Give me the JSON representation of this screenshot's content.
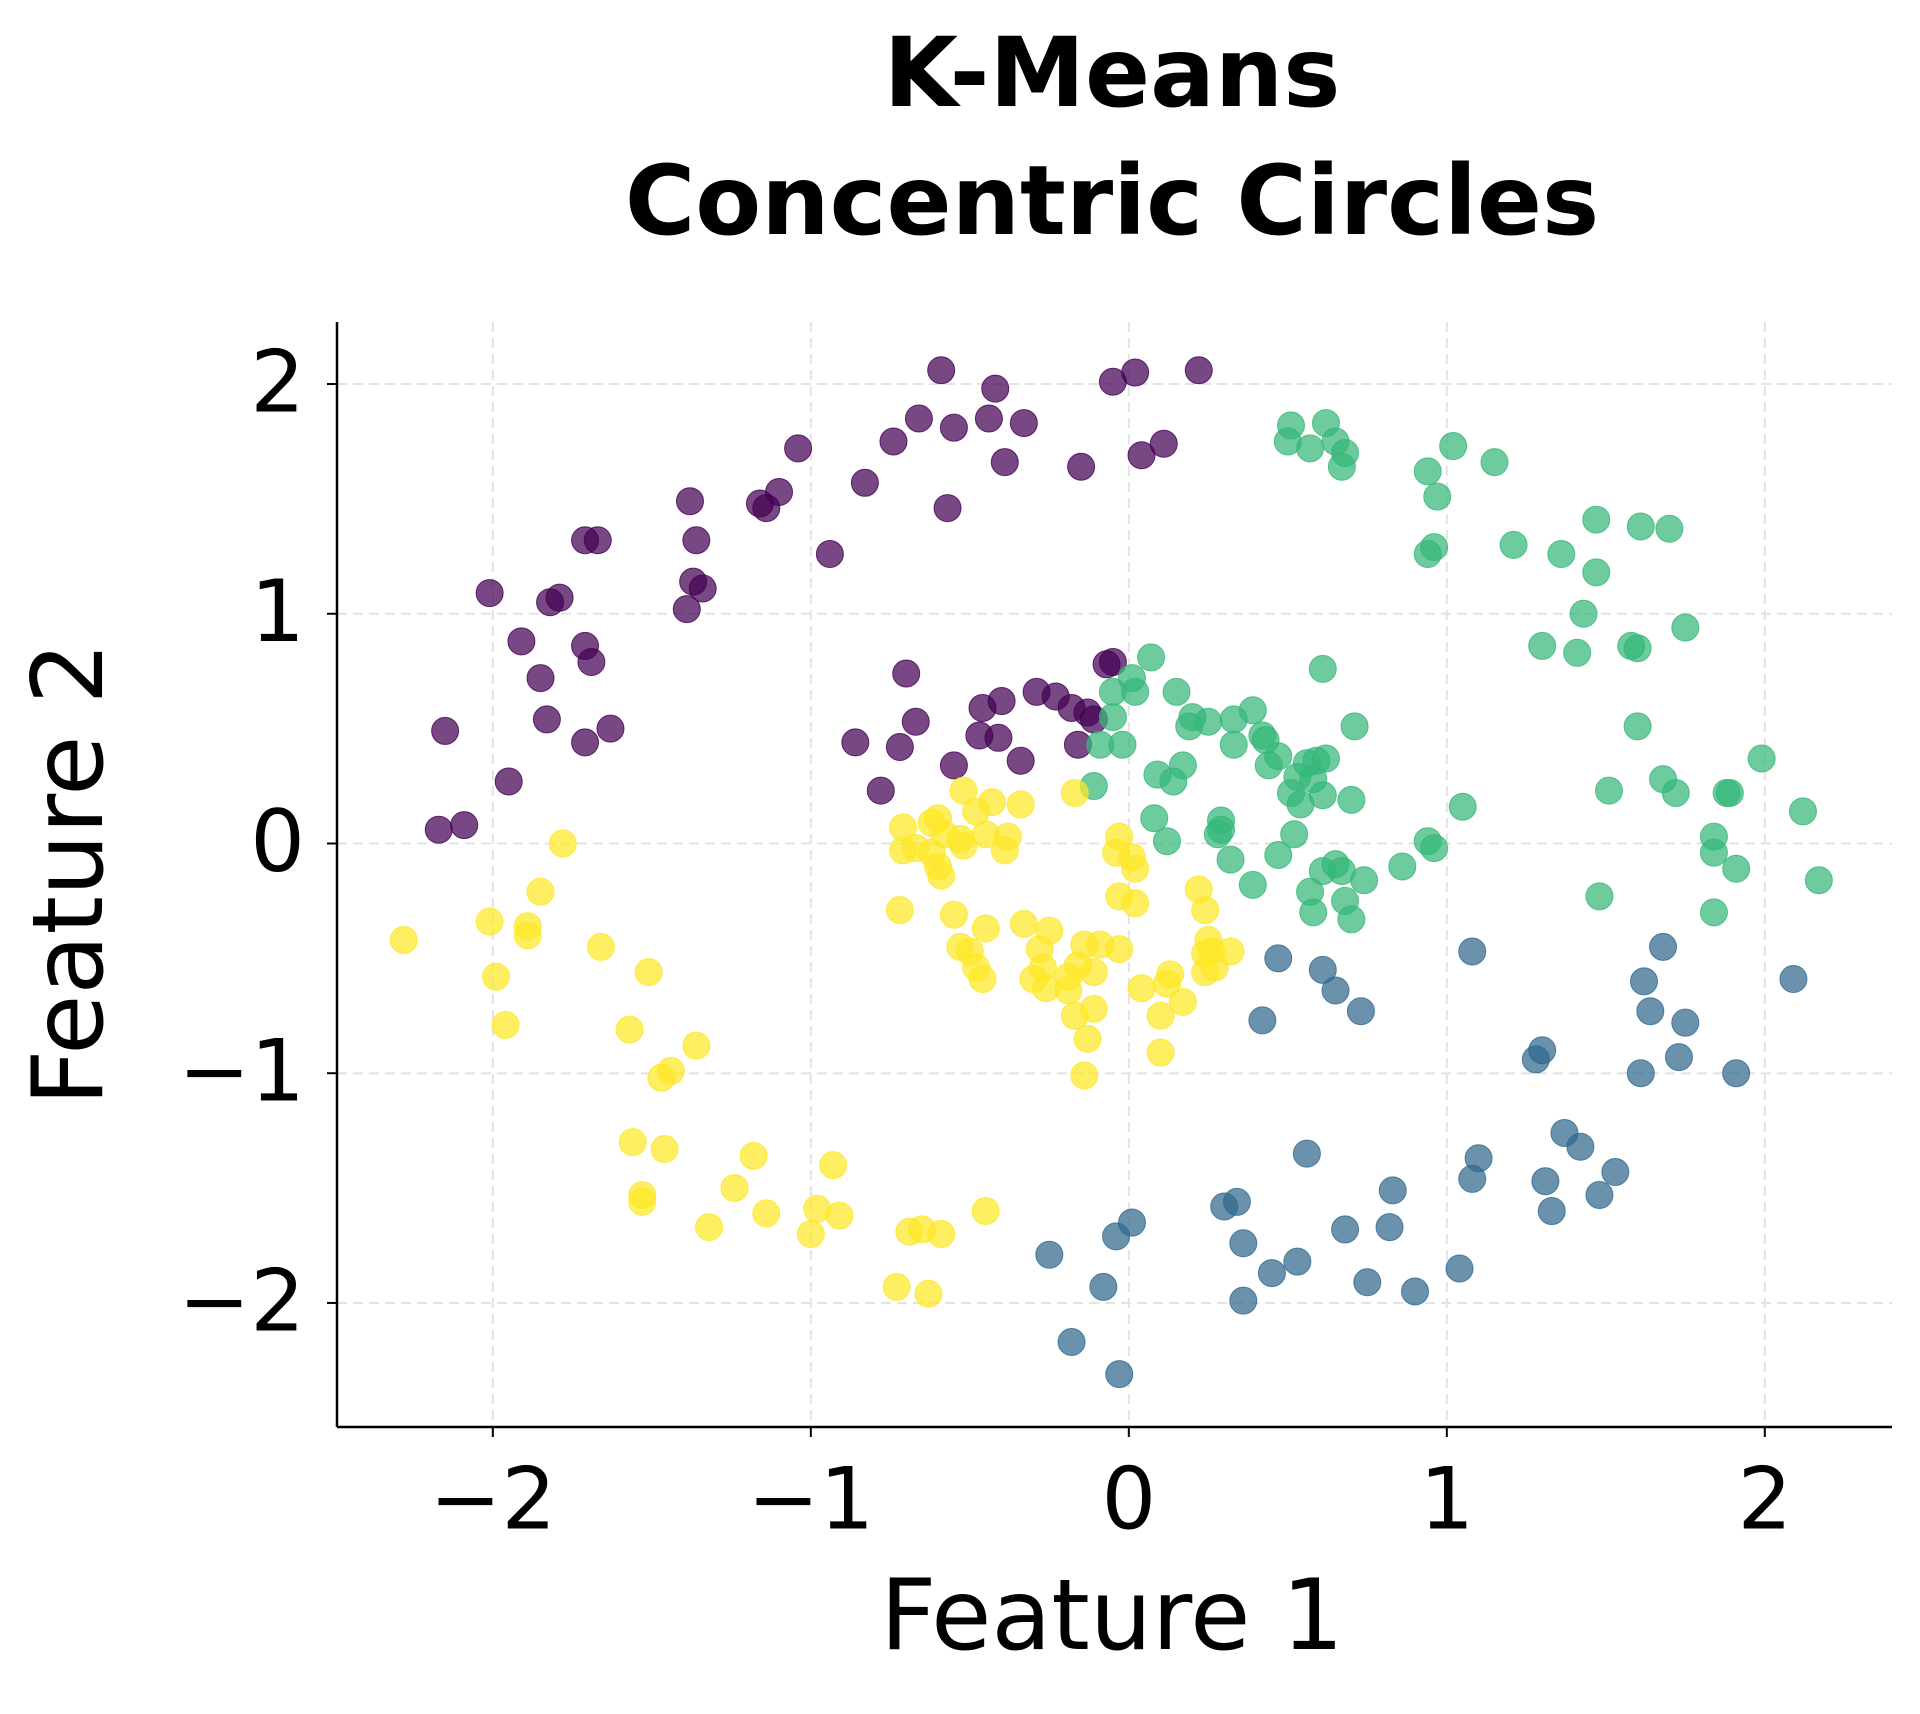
{
  "chart_data": {
    "type": "scatter",
    "title": "K-Means\nConcentric Circles",
    "xlabel": "Feature 1",
    "ylabel": "Feature 2",
    "xlim": [
      -2.49,
      2.4
    ],
    "ylim": [
      -2.54,
      2.27
    ],
    "xticks": [
      {
        "value": -2,
        "label": "−2"
      },
      {
        "value": -1,
        "label": "−1"
      },
      0,
      1,
      2
    ],
    "yticks": [
      {
        "value": -2,
        "label": "−2"
      },
      {
        "value": -1,
        "label": "−1"
      },
      0,
      1,
      2
    ],
    "grid": true,
    "series": [
      {
        "color": "#440154",
        "x": [
          -0.59,
          -0.05,
          0.02,
          0.22,
          -0.42,
          -0.66,
          -0.55,
          -0.44,
          -0.33,
          -1.04,
          -0.74,
          -0.39,
          -0.15,
          0.04,
          0.11,
          -0.83,
          -1.1,
          -1.16,
          -1.14,
          -1.38,
          -0.57,
          -1.36,
          -0.94,
          -1.71,
          -1.67,
          -1.37,
          -1.34,
          -1.39,
          -2.01,
          -1.82,
          -1.79,
          -1.91,
          -1.71,
          -1.69,
          -1.85,
          -1.83,
          -1.71,
          -1.63,
          -2.15,
          -1.95,
          -2.17,
          -2.09,
          -0.7,
          -0.67,
          -0.86,
          -0.72,
          -0.78,
          -0.55,
          -0.46,
          -0.4,
          -0.47,
          -0.41,
          -0.34,
          -0.29,
          -0.23,
          -0.18,
          -0.13,
          -0.16,
          -0.07,
          -0.05,
          -0.11
        ],
        "values": [
          2.06,
          2.01,
          2.05,
          2.06,
          1.98,
          1.85,
          1.81,
          1.85,
          1.83,
          1.72,
          1.75,
          1.66,
          1.64,
          1.69,
          1.74,
          1.57,
          1.53,
          1.48,
          1.46,
          1.49,
          1.46,
          1.32,
          1.26,
          1.32,
          1.32,
          1.14,
          1.11,
          1.02,
          1.09,
          1.05,
          1.07,
          0.88,
          0.86,
          0.79,
          0.72,
          0.54,
          0.44,
          0.5,
          0.49,
          0.27,
          0.06,
          0.08,
          0.74,
          0.53,
          0.44,
          0.42,
          0.23,
          0.34,
          0.59,
          0.62,
          0.47,
          0.46,
          0.36,
          0.66,
          0.64,
          0.59,
          0.57,
          0.43,
          0.78,
          0.79,
          0.54
        ]
      },
      {
        "color": "#31688e",
        "x": [
          0.47,
          0.61,
          0.65,
          0.73,
          0.42,
          1.08,
          1.68,
          2.09,
          1.62,
          1.64,
          1.75,
          1.73,
          1.61,
          1.91,
          1.3,
          1.28,
          1.37,
          1.42,
          0.56,
          1.1,
          1.08,
          1.31,
          1.53,
          1.48,
          1.33,
          0.83,
          0.34,
          0.3,
          0.36,
          0.68,
          0.82,
          0.53,
          0.45,
          0.75,
          0.9,
          1.04,
          0.36,
          0.01,
          -0.04,
          -0.25,
          -0.08,
          -0.18,
          -0.03
        ],
        "values": [
          -0.5,
          -0.55,
          -0.64,
          -0.73,
          -0.77,
          -0.47,
          -0.45,
          -0.59,
          -0.6,
          -0.73,
          -0.78,
          -0.93,
          -1.0,
          -1.0,
          -0.9,
          -0.94,
          -1.26,
          -1.32,
          -1.35,
          -1.37,
          -1.46,
          -1.47,
          -1.43,
          -1.53,
          -1.6,
          -1.51,
          -1.56,
          -1.58,
          -1.74,
          -1.68,
          -1.67,
          -1.82,
          -1.87,
          -1.91,
          -1.95,
          -1.85,
          -1.99,
          -1.65,
          -1.71,
          -1.79,
          -1.93,
          -2.17,
          -2.31
        ]
      },
      {
        "color": "#35b779",
        "x": [
          0.51,
          0.62,
          0.5,
          0.57,
          0.65,
          0.68,
          0.67,
          1.02,
          1.15,
          0.94,
          0.97,
          1.21,
          1.36,
          1.47,
          1.61,
          1.7,
          0.96,
          0.94,
          1.47,
          1.43,
          1.75,
          1.3,
          1.41,
          1.58,
          1.6,
          1.6,
          1.99,
          2.12,
          1.51,
          1.68,
          1.72,
          1.88,
          1.89,
          1.84,
          1.84,
          1.91,
          2.17,
          1.84,
          1.48,
          1.05,
          0.94,
          0.96,
          0.61,
          0.71,
          0.7,
          0.86,
          0.74,
          0.68,
          0.7,
          0.58,
          0.57,
          0.61,
          0.65,
          0.67,
          0.47,
          0.39,
          0.32,
          0.28,
          0.29,
          0.29,
          0.51,
          0.53,
          0.56,
          0.59,
          0.62,
          0.58,
          0.54,
          0.61,
          0.52,
          0.47,
          0.44,
          0.42,
          0.43,
          0.39,
          0.33,
          0.33,
          0.25,
          0.2,
          0.19,
          0.15,
          0.07,
          0.01,
          0.02,
          -0.05,
          -0.05,
          -0.02,
          -0.09,
          -0.11,
          0.17,
          0.14,
          0.09,
          0.08,
          0.12
        ],
        "values": [
          1.82,
          1.83,
          1.75,
          1.72,
          1.75,
          1.7,
          1.64,
          1.73,
          1.66,
          1.62,
          1.51,
          1.3,
          1.26,
          1.41,
          1.38,
          1.37,
          1.29,
          1.26,
          1.18,
          1.0,
          0.94,
          0.86,
          0.83,
          0.86,
          0.85,
          0.51,
          0.37,
          0.14,
          0.23,
          0.28,
          0.22,
          0.22,
          0.22,
          0.03,
          -0.04,
          -0.11,
          -0.16,
          -0.3,
          -0.23,
          0.16,
          0.01,
          -0.02,
          0.76,
          0.51,
          0.19,
          -0.1,
          -0.16,
          -0.25,
          -0.33,
          -0.3,
          -0.21,
          -0.12,
          -0.09,
          -0.12,
          -0.05,
          -0.18,
          -0.07,
          0.04,
          0.1,
          0.06,
          0.22,
          0.29,
          0.35,
          0.36,
          0.37,
          0.28,
          0.17,
          0.21,
          0.04,
          0.38,
          0.34,
          0.47,
          0.45,
          0.58,
          0.54,
          0.43,
          0.53,
          0.55,
          0.51,
          0.66,
          0.81,
          0.72,
          0.66,
          0.66,
          0.55,
          0.43,
          0.43,
          0.25,
          0.34,
          0.27,
          0.3,
          0.11,
          0.01
        ]
      },
      {
        "color": "#fde725",
        "x": [
          -1.78,
          -1.85,
          -2.01,
          -1.89,
          -1.89,
          -2.28,
          -1.99,
          -1.66,
          -1.51,
          -1.96,
          -1.57,
          -1.36,
          -1.44,
          -1.47,
          -1.56,
          -1.46,
          -1.53,
          -1.53,
          -1.18,
          -0.93,
          -1.24,
          -1.14,
          -1.32,
          -0.98,
          -0.91,
          -1.0,
          -0.69,
          -0.65,
          -0.59,
          -0.45,
          -0.73,
          -0.63,
          -0.17,
          -0.52,
          -0.43,
          -0.34,
          -0.48,
          -0.6,
          -0.62,
          -0.71,
          -0.58,
          -0.53,
          -0.45,
          -0.38,
          -0.71,
          -0.67,
          -0.62,
          -0.52,
          -0.39,
          -0.6,
          -0.59,
          -0.72,
          -0.55,
          -0.45,
          -0.33,
          -0.25,
          -0.53,
          -0.5,
          -0.48,
          -0.46,
          -0.28,
          -0.27,
          -0.3,
          -0.26,
          -0.19,
          -0.16,
          -0.11,
          -0.14,
          -0.09,
          -0.19,
          -0.17,
          -0.11,
          -0.13,
          -0.14,
          -0.03,
          -0.03,
          -0.04,
          0.01,
          0.02,
          -0.03,
          0.02,
          0.04,
          0.13,
          0.12,
          0.17,
          0.1,
          0.1,
          0.22,
          0.24,
          0.25,
          0.26,
          0.24,
          0.32,
          0.27,
          0.24
        ],
        "values": [
          0.0,
          -0.21,
          -0.34,
          -0.36,
          -0.4,
          -0.42,
          -0.58,
          -0.45,
          -0.56,
          -0.79,
          -0.81,
          -0.88,
          -0.99,
          -1.02,
          -1.3,
          -1.33,
          -1.53,
          -1.56,
          -1.36,
          -1.4,
          -1.5,
          -1.61,
          -1.67,
          -1.59,
          -1.62,
          -1.7,
          -1.69,
          -1.68,
          -1.7,
          -1.6,
          -1.93,
          -1.96,
          0.22,
          0.23,
          0.18,
          0.17,
          0.14,
          0.11,
          0.09,
          0.07,
          0.04,
          0.02,
          0.04,
          0.03,
          -0.03,
          -0.02,
          -0.04,
          -0.01,
          -0.03,
          -0.1,
          -0.14,
          -0.29,
          -0.31,
          -0.37,
          -0.35,
          -0.38,
          -0.45,
          -0.47,
          -0.54,
          -0.59,
          -0.46,
          -0.54,
          -0.59,
          -0.63,
          -0.58,
          -0.53,
          -0.56,
          -0.44,
          -0.44,
          -0.64,
          -0.75,
          -0.72,
          -0.85,
          -1.01,
          -0.46,
          0.03,
          -0.04,
          -0.06,
          -0.11,
          -0.23,
          -0.26,
          -0.63,
          -0.57,
          -0.61,
          -0.69,
          -0.75,
          -0.91,
          -0.2,
          -0.29,
          -0.42,
          -0.47,
          -0.48,
          -0.47,
          -0.54,
          -0.56
        ]
      }
    ]
  }
}
